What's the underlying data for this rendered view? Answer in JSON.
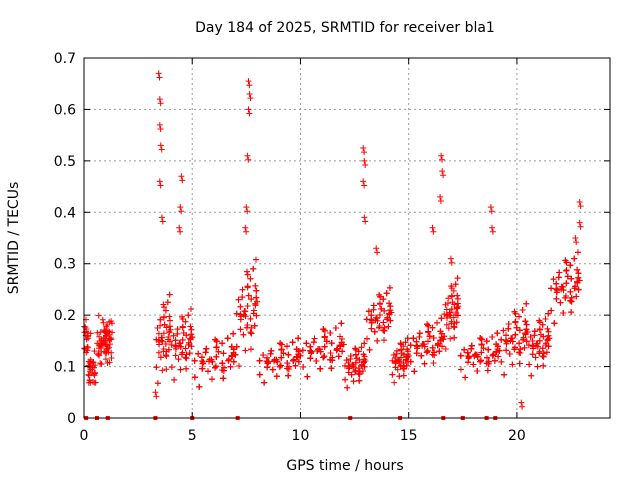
{
  "chart_data": {
    "type": "scatter",
    "title": "Day 184 of 2025, SRMTID for receiver bla1",
    "xlabel": "GPS time / hours",
    "ylabel": "SRMTID / TECUs",
    "xlim": [
      0,
      24.3
    ],
    "ylim": [
      0,
      0.7
    ],
    "xticks": [
      0,
      5,
      10,
      15,
      20
    ],
    "yticks": [
      0,
      0.1,
      0.2,
      0.3,
      0.4,
      0.5,
      0.6,
      0.7
    ],
    "grid": true,
    "marker": "+",
    "color": "#ff0000",
    "zero_markers_x": [
      0.1,
      0.6,
      1.1,
      3.3,
      5.0,
      7.1,
      12.3,
      14.6,
      16.6,
      17.5,
      18.6,
      19.0
    ],
    "series": [
      {
        "name": "SRMTID",
        "segments": [
          {
            "start": 0.0,
            "end": 0.2,
            "base": 0.14,
            "amp": 0.05
          },
          {
            "start": 0.2,
            "end": 0.55,
            "base": 0.09,
            "amp": 0.04
          },
          {
            "start": 0.55,
            "end": 1.3,
            "base": 0.14,
            "amp": 0.06
          },
          {
            "start": 3.3,
            "end": 4.0,
            "base": 0.15,
            "amp": 0.1
          },
          {
            "start": 4.0,
            "end": 5.0,
            "base": 0.14,
            "amp": 0.08
          },
          {
            "start": 5.0,
            "end": 7.0,
            "base": 0.11,
            "amp": 0.06
          },
          {
            "start": 7.0,
            "end": 8.0,
            "base": 0.2,
            "amp": 0.12
          },
          {
            "start": 8.0,
            "end": 10.0,
            "base": 0.11,
            "amp": 0.05
          },
          {
            "start": 10.0,
            "end": 12.0,
            "base": 0.13,
            "amp": 0.06
          },
          {
            "start": 12.0,
            "end": 13.0,
            "base": 0.1,
            "amp": 0.05
          },
          {
            "start": 13.0,
            "end": 14.2,
            "base": 0.19,
            "amp": 0.07
          },
          {
            "start": 14.2,
            "end": 15.0,
            "base": 0.11,
            "amp": 0.05
          },
          {
            "start": 15.0,
            "end": 16.6,
            "base": 0.14,
            "amp": 0.06
          },
          {
            "start": 16.6,
            "end": 17.3,
            "base": 0.2,
            "amp": 0.08
          },
          {
            "start": 17.3,
            "end": 19.2,
            "base": 0.12,
            "amp": 0.05
          },
          {
            "start": 19.2,
            "end": 20.5,
            "base": 0.15,
            "amp": 0.08
          },
          {
            "start": 20.5,
            "end": 21.5,
            "base": 0.14,
            "amp": 0.07
          },
          {
            "start": 21.5,
            "end": 22.9,
            "base": 0.25,
            "amp": 0.08
          }
        ],
        "peaks": [
          {
            "x": 3.45,
            "y": 0.67
          },
          {
            "x": 3.5,
            "y": 0.62
          },
          {
            "x": 3.5,
            "y": 0.57
          },
          {
            "x": 3.55,
            "y": 0.53
          },
          {
            "x": 3.5,
            "y": 0.46
          },
          {
            "x": 3.6,
            "y": 0.39
          },
          {
            "x": 4.5,
            "y": 0.47
          },
          {
            "x": 4.45,
            "y": 0.41
          },
          {
            "x": 4.4,
            "y": 0.37
          },
          {
            "x": 7.6,
            "y": 0.655
          },
          {
            "x": 7.65,
            "y": 0.63
          },
          {
            "x": 7.6,
            "y": 0.6
          },
          {
            "x": 7.55,
            "y": 0.51
          },
          {
            "x": 7.5,
            "y": 0.41
          },
          {
            "x": 7.45,
            "y": 0.37
          },
          {
            "x": 12.9,
            "y": 0.525
          },
          {
            "x": 12.95,
            "y": 0.5
          },
          {
            "x": 12.9,
            "y": 0.46
          },
          {
            "x": 12.95,
            "y": 0.39
          },
          {
            "x": 13.5,
            "y": 0.33
          },
          {
            "x": 16.5,
            "y": 0.51
          },
          {
            "x": 16.55,
            "y": 0.48
          },
          {
            "x": 16.45,
            "y": 0.43
          },
          {
            "x": 16.1,
            "y": 0.37
          },
          {
            "x": 16.95,
            "y": 0.31
          },
          {
            "x": 18.8,
            "y": 0.41
          },
          {
            "x": 18.85,
            "y": 0.37
          },
          {
            "x": 22.9,
            "y": 0.42
          },
          {
            "x": 22.9,
            "y": 0.38
          },
          {
            "x": 22.7,
            "y": 0.35
          },
          {
            "x": 20.2,
            "y": 0.03
          },
          {
            "x": 3.3,
            "y": 0.05
          }
        ]
      }
    ]
  }
}
